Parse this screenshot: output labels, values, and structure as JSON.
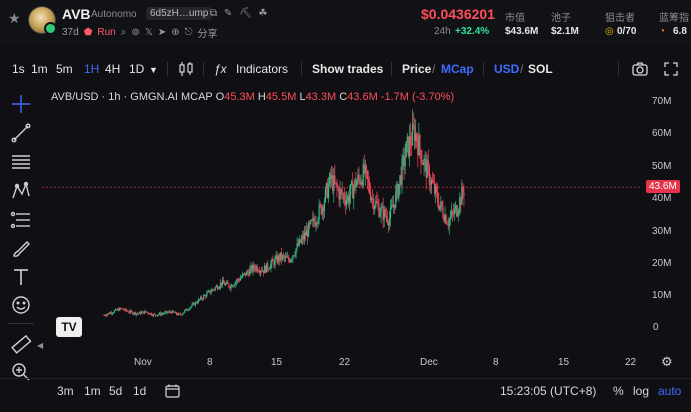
{
  "header": {
    "ticker": "AVB",
    "full_name": "Autonomo",
    "address": "6d5zH…ump",
    "age": "37d",
    "run_label": "Run",
    "share_label": "分享",
    "price": "$0.0436201",
    "change_period": "24h",
    "change_value": "+32.4%",
    "stats": [
      {
        "label": "市值",
        "value": "$43.6M"
      },
      {
        "label": "池子",
        "value": "$2.1M"
      },
      {
        "label": "狙击者",
        "value": "0/70"
      },
      {
        "label": "蓝筹指",
        "value": "6.8"
      }
    ]
  },
  "toolbar": {
    "intervals": [
      "1s",
      "1m",
      "5m",
      "1H",
      "4H",
      "1D"
    ],
    "active_interval": "1H",
    "indicators_label": "Indicators",
    "show_trades_label": "Show trades",
    "price_label": "Price",
    "mcap_label": "MCap",
    "usd_label": "USD",
    "sol_label": "SOL"
  },
  "legend": {
    "title": "AVB/USD · 1h · GMGN.AI MCAP",
    "o_key": "O",
    "o_val": "45.3M",
    "h_key": "H",
    "h_val": "45.5M",
    "l_key": "L",
    "l_val": "43.3M",
    "c_key": "C",
    "c_val": "43.6M",
    "change": "-1.7M (-3.70%)"
  },
  "chart_data": {
    "type": "candlestick",
    "title": "AVB/USD · 1h · GMGN.AI MCAP",
    "y_ticks": [
      "70M",
      "60M",
      "50M",
      "40M",
      "30M",
      "20M",
      "10M",
      "0"
    ],
    "ylim": [
      0,
      70
    ],
    "y_unit": "M",
    "x_ticks": [
      "Nov",
      "8",
      "15",
      "22",
      "Dec",
      "8",
      "15",
      "22"
    ],
    "last_value_tag": "43.6M",
    "up_color": "#2ebd85",
    "down_color": "#f6465d",
    "close_series_M": [
      4,
      5,
      6,
      5,
      4.5,
      5,
      4,
      4.5,
      5,
      4,
      6,
      8,
      10,
      12,
      14,
      13,
      15,
      17,
      19,
      18,
      20,
      22,
      21,
      25,
      29,
      33,
      38,
      46,
      42,
      40,
      45,
      48,
      40,
      36,
      34,
      43,
      55,
      61,
      52,
      45,
      38,
      33,
      37,
      43.6
    ]
  },
  "bottom": {
    "ranges": [
      "3m",
      "1m",
      "5d",
      "1d"
    ],
    "time": "15:23:05 (UTC+8)",
    "percent_label": "%",
    "log_label": "log",
    "auto_label": "auto"
  },
  "logo_text": "TV"
}
